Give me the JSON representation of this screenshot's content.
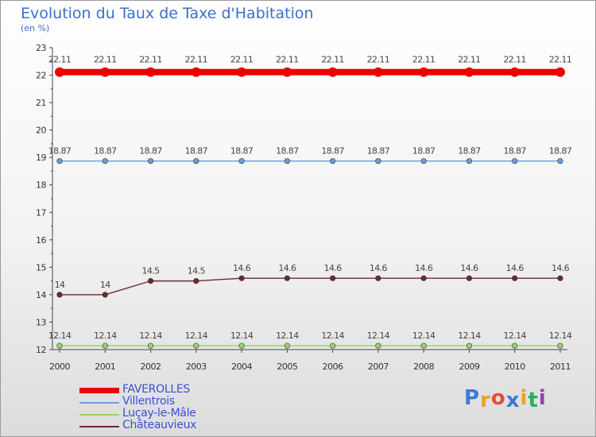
{
  "header": {
    "title": "Evolution du Taux de Taxe d'Habitation",
    "subtitle": "(en %)"
  },
  "chart_data": {
    "type": "line",
    "title": "Evolution du Taux de Taxe d'Habitation",
    "ylabel": "(en %)",
    "xlabel": "",
    "categories": [
      "2000",
      "2001",
      "2002",
      "2003",
      "2004",
      "2005",
      "2006",
      "2007",
      "2008",
      "2009",
      "2010",
      "2011"
    ],
    "ylim": [
      12,
      23
    ],
    "yticks": [
      12,
      13,
      14,
      15,
      16,
      17,
      18,
      19,
      20,
      21,
      22,
      23
    ],
    "grid": false,
    "series": [
      {
        "name": "FAVEROLLES",
        "color": "#ee0000",
        "emphasis": "thick",
        "values": [
          22.11,
          22.11,
          22.11,
          22.11,
          22.11,
          22.11,
          22.11,
          22.11,
          22.11,
          22.11,
          22.11,
          22.11
        ],
        "labels": [
          "22.11",
          "22.11",
          "22.11",
          "22.11",
          "22.11",
          "22.11",
          "22.11",
          "22.11",
          "22.11",
          "22.11",
          "22.11",
          "22.11"
        ]
      },
      {
        "name": "Villentrois",
        "color": "#6b9ed6",
        "values": [
          18.87,
          18.87,
          18.87,
          18.87,
          18.87,
          18.87,
          18.87,
          18.87,
          18.87,
          18.87,
          18.87,
          18.87
        ],
        "labels": [
          "18.87",
          "18.87",
          "18.87",
          "18.87",
          "18.87",
          "18.87",
          "18.87",
          "18.87",
          "18.87",
          "18.87",
          "18.87",
          "18.87"
        ]
      },
      {
        "name": "Luçay-le-Mâle",
        "color": "#98d26a",
        "values": [
          12.14,
          12.14,
          12.14,
          12.14,
          12.14,
          12.14,
          12.14,
          12.14,
          12.14,
          12.14,
          12.14,
          12.14
        ],
        "labels": [
          "12.14",
          "12.14",
          "12.14",
          "12.14",
          "12.14",
          "12.14",
          "12.14",
          "12.14",
          "12.14",
          "12.14",
          "12.14",
          "12.14"
        ]
      },
      {
        "name": "Châteauvieux",
        "color": "#6e2a2a",
        "values": [
          14,
          14,
          14.5,
          14.5,
          14.6,
          14.6,
          14.6,
          14.6,
          14.6,
          14.6,
          14.6,
          14.6
        ],
        "labels": [
          "14",
          "14",
          "14.5",
          "14.5",
          "14.6",
          "14.6",
          "14.6",
          "14.6",
          "14.6",
          "14.6",
          "14.6",
          "14.6"
        ]
      }
    ],
    "legend": "bottom-left"
  },
  "brand": {
    "letters": [
      "P",
      "r",
      "o",
      "x",
      "i",
      "t",
      "i"
    ],
    "colors": [
      "#3a7bd5",
      "#f0a020",
      "#e74c3c",
      "#3a7bd5",
      "#f0a020",
      "#27ae60",
      "#8e44ad"
    ]
  }
}
